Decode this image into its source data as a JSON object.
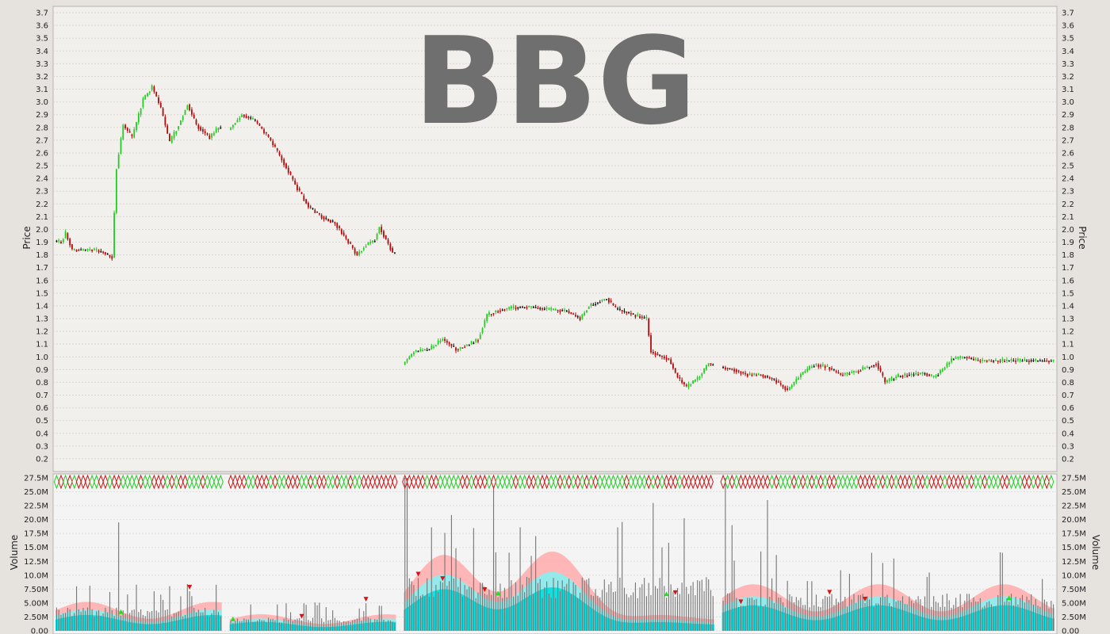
{
  "chart_data": [
    {
      "type": "candlestick",
      "panel": "price",
      "watermark": "BBG",
      "ylabel": "Price",
      "ylim": [
        0.1,
        3.75
      ],
      "ticks": [
        "0.2",
        "0.3",
        "0.4",
        "0.5",
        "0.6",
        "0.7",
        "0.8",
        "0.9",
        "1.0",
        "1.1",
        "1.2",
        "1.3",
        "1.4",
        "1.5",
        "1.6",
        "1.7",
        "1.8",
        "1.9",
        "2.0",
        "2.1",
        "2.2",
        "2.3",
        "2.4",
        "2.5",
        "2.6",
        "2.7",
        "2.8",
        "2.9",
        "3.0",
        "3.1",
        "3.2",
        "3.3",
        "3.4",
        "3.5",
        "3.6",
        "3.7"
      ],
      "grid": true,
      "colors": {
        "up": "#22cc22",
        "down": "#b00a0a",
        "neutral": "#111111"
      },
      "segments": [
        {
          "bars": 75,
          "points": [
            [
              0,
              1.91
            ],
            [
              3,
              1.9
            ],
            [
              5,
              1.97
            ],
            [
              8,
              1.84
            ],
            [
              12,
              1.84
            ],
            [
              18,
              1.84
            ],
            [
              22,
              1.82
            ],
            [
              26,
              1.78
            ],
            [
              28,
              2.48
            ],
            [
              31,
              2.82
            ],
            [
              35,
              2.72
            ],
            [
              40,
              3.02
            ],
            [
              44,
              3.12
            ],
            [
              48,
              2.95
            ],
            [
              52,
              2.68
            ],
            [
              56,
              2.82
            ],
            [
              60,
              2.98
            ],
            [
              64,
              2.82
            ],
            [
              70,
              2.72
            ],
            [
              74,
              2.8
            ]
          ]
        },
        {
          "bars": 75,
          "points": [
            [
              0,
              2.78
            ],
            [
              6,
              2.9
            ],
            [
              12,
              2.85
            ],
            [
              18,
              2.72
            ],
            [
              24,
              2.55
            ],
            [
              30,
              2.35
            ],
            [
              36,
              2.18
            ],
            [
              42,
              2.1
            ],
            [
              48,
              2.05
            ],
            [
              54,
              1.9
            ],
            [
              58,
              1.8
            ],
            [
              62,
              1.88
            ],
            [
              66,
              1.92
            ],
            [
              68,
              2.02
            ],
            [
              71,
              1.92
            ],
            [
              74,
              1.82
            ]
          ]
        },
        {
          "bars": 140,
          "points": [
            [
              0,
              0.94
            ],
            [
              5,
              1.04
            ],
            [
              12,
              1.06
            ],
            [
              18,
              1.14
            ],
            [
              24,
              1.06
            ],
            [
              30,
              1.1
            ],
            [
              34,
              1.14
            ],
            [
              38,
              1.33
            ],
            [
              44,
              1.37
            ],
            [
              52,
              1.39
            ],
            [
              58,
              1.39
            ],
            [
              66,
              1.37
            ],
            [
              74,
              1.36
            ],
            [
              80,
              1.3
            ],
            [
              84,
              1.4
            ],
            [
              92,
              1.46
            ],
            [
              96,
              1.38
            ],
            [
              104,
              1.33
            ],
            [
              110,
              1.3
            ],
            [
              112,
              1.04
            ],
            [
              116,
              1.01
            ],
            [
              120,
              0.98
            ],
            [
              124,
              0.84
            ],
            [
              128,
              0.76
            ],
            [
              134,
              0.85
            ],
            [
              138,
              0.95
            ],
            [
              140,
              0.93
            ]
          ]
        },
        {
          "bars": 150,
          "points": [
            [
              0,
              0.92
            ],
            [
              6,
              0.9
            ],
            [
              12,
              0.86
            ],
            [
              18,
              0.86
            ],
            [
              24,
              0.82
            ],
            [
              30,
              0.74
            ],
            [
              36,
              0.86
            ],
            [
              42,
              0.94
            ],
            [
              48,
              0.92
            ],
            [
              54,
              0.86
            ],
            [
              60,
              0.88
            ],
            [
              66,
              0.92
            ],
            [
              70,
              0.95
            ],
            [
              74,
              0.8
            ],
            [
              80,
              0.85
            ],
            [
              86,
              0.86
            ],
            [
              92,
              0.87
            ],
            [
              96,
              0.84
            ],
            [
              100,
              0.9
            ],
            [
              104,
              0.98
            ],
            [
              110,
              1.0
            ],
            [
              116,
              0.97
            ]
          ]
        }
      ]
    },
    {
      "type": "bar",
      "panel": "volume",
      "ylabel": "Volume",
      "ylim": [
        0,
        27.5
      ],
      "unit": "M",
      "ticks": [
        "0.00",
        "2.50M",
        "5.00M",
        "7.50M",
        "10.0M",
        "12.5M",
        "15.0M",
        "17.5M",
        "20.0M",
        "22.5M",
        "25.0M",
        "27.5M"
      ],
      "grid": true,
      "colors": {
        "volume_bar": "#777777",
        "volume_band_inner": "#00e0e0",
        "volume_band_mid": "#88f0f0",
        "volume_band_outer": "#ffaaaa"
      },
      "base_volume": [
        2.8,
        1.6,
        6.5,
        4.5
      ],
      "spikes": [
        {
          "seg": 0,
          "bar": 28,
          "value": 19.5
        },
        {
          "seg": 2,
          "bar": 0,
          "value": 27.5
        },
        {
          "seg": 2,
          "bar": 1,
          "value": 27.5
        },
        {
          "seg": 2,
          "bar": 40,
          "value": 26.0
        },
        {
          "seg": 2,
          "bar": 112,
          "value": 23.0
        },
        {
          "seg": 2,
          "bar": 116,
          "value": 15.0
        },
        {
          "seg": 3,
          "bar": 1,
          "value": 27.5
        },
        {
          "seg": 3,
          "bar": 4,
          "value": 19.0
        },
        {
          "seg": 3,
          "bar": 20,
          "value": 23.5
        }
      ]
    }
  ]
}
